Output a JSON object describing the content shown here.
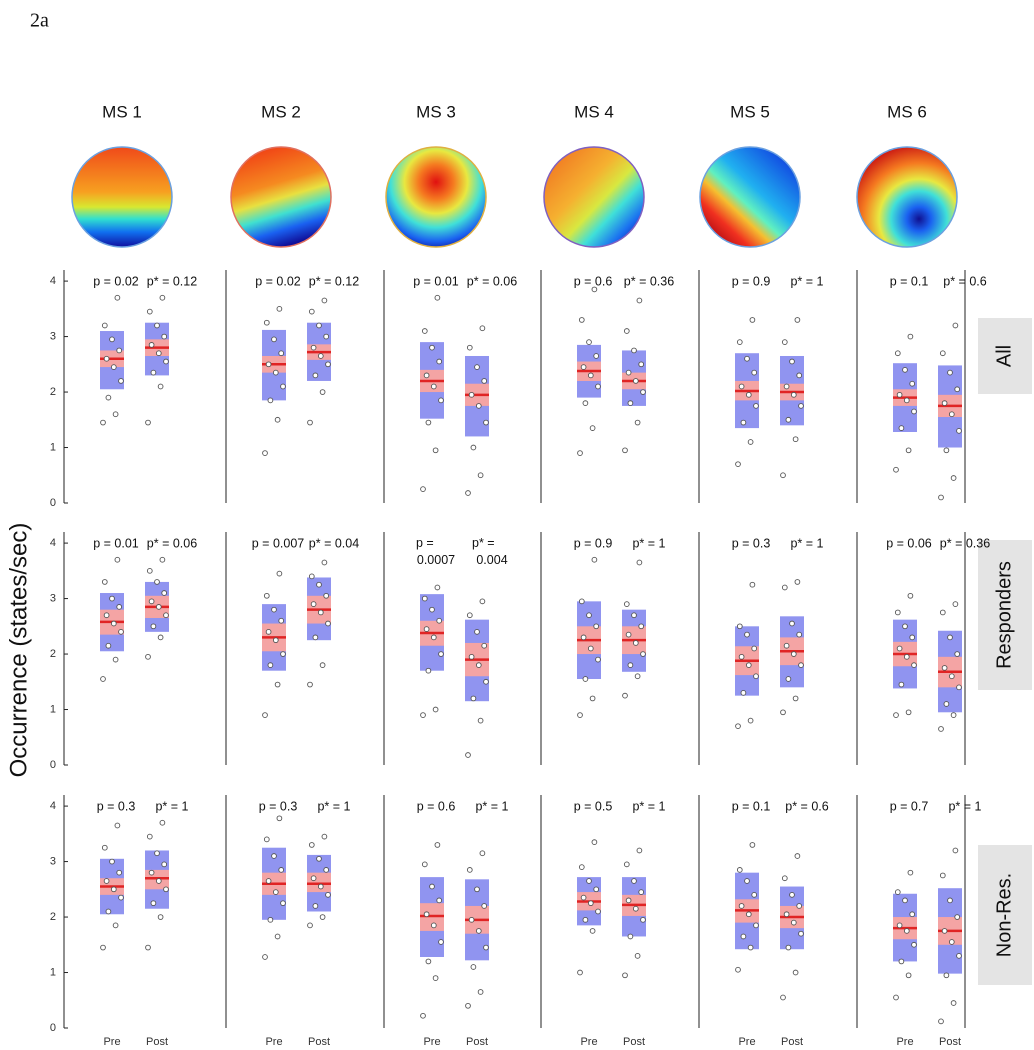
{
  "figure_label": "2a",
  "chart_data": {
    "type": "dotbox",
    "ylabel": "Occurrence (states/sec)",
    "columns": [
      "MS 1",
      "MS 2",
      "MS 3",
      "MS 4",
      "MS 5",
      "MS 6"
    ],
    "rows": [
      "All",
      "Responders",
      "Non-Res."
    ],
    "categories": [
      "Pre",
      "Post"
    ],
    "ylim": [
      0,
      4.2
    ],
    "yticks": [
      0,
      1,
      2,
      3,
      4
    ],
    "sd_color": "#9094f0",
    "ci_color": "#f4a4a4",
    "mean_color": "#e02424",
    "panels": [
      [
        {
          "p": "p = 0.02",
          "pstar": "p* = 0.12",
          "pre": {
            "mean": 2.6,
            "ci": [
              2.45,
              2.75
            ],
            "sd": [
              2.05,
              3.1
            ],
            "points": [
              1.45,
              1.6,
              1.9,
              2.2,
              2.45,
              2.6,
              2.75,
              2.95,
              3.2,
              3.7
            ]
          },
          "post": {
            "mean": 2.8,
            "ci": [
              2.65,
              2.95
            ],
            "sd": [
              2.3,
              3.25
            ],
            "points": [
              1.45,
              2.1,
              2.35,
              2.55,
              2.7,
              2.85,
              3.0,
              3.2,
              3.45,
              3.7
            ]
          }
        },
        {
          "p": "p = 0.02",
          "pstar": "p* = 0.12",
          "pre": {
            "mean": 2.5,
            "ci": [
              2.35,
              2.65
            ],
            "sd": [
              1.85,
              3.12
            ],
            "points": [
              0.9,
              1.5,
              1.85,
              2.1,
              2.35,
              2.5,
              2.7,
              2.95,
              3.25,
              3.5
            ]
          },
          "post": {
            "mean": 2.72,
            "ci": [
              2.58,
              2.86
            ],
            "sd": [
              2.2,
              3.25
            ],
            "points": [
              1.45,
              2.0,
              2.3,
              2.5,
              2.65,
              2.8,
              3.0,
              3.2,
              3.45,
              3.65
            ]
          }
        },
        {
          "p": "p = 0.01",
          "pstar": "p* = 0.06",
          "pre": {
            "mean": 2.2,
            "ci": [
              2.0,
              2.4
            ],
            "sd": [
              1.52,
              2.9
            ],
            "points": [
              0.25,
              0.95,
              1.45,
              1.85,
              2.1,
              2.3,
              2.55,
              2.8,
              3.1,
              3.7
            ]
          },
          "post": {
            "mean": 1.95,
            "ci": [
              1.75,
              2.15
            ],
            "sd": [
              1.2,
              2.65
            ],
            "points": [
              0.18,
              0.5,
              1.0,
              1.45,
              1.75,
              1.95,
              2.2,
              2.45,
              2.8,
              3.15
            ]
          }
        },
        {
          "p": "p = 0.6",
          "pstar": "p* = 0.36",
          "pre": {
            "mean": 2.38,
            "ci": [
              2.2,
              2.55
            ],
            "sd": [
              1.9,
              2.85
            ],
            "points": [
              0.9,
              1.35,
              1.8,
              2.1,
              2.3,
              2.45,
              2.65,
              2.9,
              3.3,
              3.85
            ]
          },
          "post": {
            "mean": 2.2,
            "ci": [
              2.05,
              2.35
            ],
            "sd": [
              1.75,
              2.75
            ],
            "points": [
              0.95,
              1.45,
              1.8,
              2.0,
              2.2,
              2.35,
              2.5,
              2.75,
              3.1,
              3.65
            ]
          }
        },
        {
          "p": "p = 0.9",
          "pstar": "p* = 1",
          "pre": {
            "mean": 2.02,
            "ci": [
              1.85,
              2.2
            ],
            "sd": [
              1.35,
              2.7
            ],
            "points": [
              0.7,
              1.1,
              1.45,
              1.75,
              1.95,
              2.1,
              2.35,
              2.6,
              2.9,
              3.3
            ]
          },
          "post": {
            "mean": 2.0,
            "ci": [
              1.85,
              2.15
            ],
            "sd": [
              1.4,
              2.65
            ],
            "points": [
              0.5,
              1.15,
              1.5,
              1.75,
              1.95,
              2.1,
              2.3,
              2.55,
              2.9,
              3.3
            ]
          }
        },
        {
          "p": "p = 0.1",
          "pstar": "p* = 0.6",
          "pre": {
            "mean": 1.9,
            "ci": [
              1.75,
              2.05
            ],
            "sd": [
              1.28,
              2.52
            ],
            "points": [
              0.6,
              0.95,
              1.35,
              1.65,
              1.85,
              1.95,
              2.15,
              2.4,
              2.7,
              3.0
            ]
          },
          "post": {
            "mean": 1.75,
            "ci": [
              1.55,
              1.95
            ],
            "sd": [
              1.0,
              2.48
            ],
            "points": [
              0.1,
              0.45,
              0.95,
              1.3,
              1.6,
              1.8,
              2.05,
              2.35,
              2.7,
              3.2
            ]
          }
        }
      ],
      [
        {
          "p": "p = 0.01",
          "pstar": "p* = 0.06",
          "pre": {
            "mean": 2.58,
            "ci": [
              2.35,
              2.8
            ],
            "sd": [
              2.05,
              3.1
            ],
            "points": [
              1.55,
              1.9,
              2.15,
              2.4,
              2.55,
              2.7,
              2.85,
              3.0,
              3.3,
              3.7
            ]
          },
          "post": {
            "mean": 2.85,
            "ci": [
              2.65,
              3.05
            ],
            "sd": [
              2.4,
              3.3
            ],
            "points": [
              1.95,
              2.3,
              2.5,
              2.7,
              2.85,
              2.95,
              3.1,
              3.3,
              3.5,
              3.7
            ]
          }
        },
        {
          "p": "p = 0.007",
          "pstar": "p* = 0.04",
          "text_color": "#e8231f",
          "pre": {
            "mean": 2.3,
            "ci": [
              2.05,
              2.55
            ],
            "sd": [
              1.7,
              2.9
            ],
            "points": [
              0.9,
              1.45,
              1.8,
              2.0,
              2.25,
              2.4,
              2.6,
              2.8,
              3.05,
              3.45
            ]
          },
          "post": {
            "mean": 2.8,
            "ci": [
              2.55,
              3.05
            ],
            "sd": [
              2.25,
              3.38
            ],
            "points": [
              1.45,
              1.8,
              2.3,
              2.55,
              2.75,
              2.9,
              3.05,
              3.25,
              3.4,
              3.65
            ]
          }
        },
        {
          "p": "p = 0.0007",
          "pstar": "p* = 0.004",
          "text_color": "#e8231f",
          "wrap": true,
          "pre": {
            "mean": 2.38,
            "ci": [
              2.15,
              2.6
            ],
            "sd": [
              1.7,
              3.08
            ],
            "points": [
              0.9,
              1.0,
              1.7,
              2.0,
              2.3,
              2.45,
              2.6,
              2.8,
              3.0,
              3.2
            ]
          },
          "post": {
            "mean": 1.9,
            "ci": [
              1.6,
              2.2
            ],
            "sd": [
              1.15,
              2.62
            ],
            "points": [
              0.18,
              0.8,
              1.2,
              1.5,
              1.8,
              1.95,
              2.15,
              2.4,
              2.7,
              2.95
            ]
          }
        },
        {
          "p": "p = 0.9",
          "pstar": "p* = 1",
          "pre": {
            "mean": 2.25,
            "ci": [
              2.0,
              2.5
            ],
            "sd": [
              1.55,
              2.95
            ],
            "points": [
              0.9,
              1.2,
              1.55,
              1.9,
              2.1,
              2.3,
              2.5,
              2.7,
              2.95,
              3.7
            ]
          },
          "post": {
            "mean": 2.25,
            "ci": [
              2.0,
              2.5
            ],
            "sd": [
              1.68,
              2.8
            ],
            "points": [
              1.25,
              1.6,
              1.8,
              2.0,
              2.2,
              2.35,
              2.5,
              2.7,
              2.9,
              3.65
            ]
          }
        },
        {
          "p": "p = 0.3",
          "pstar": "p* = 1",
          "pre": {
            "mean": 1.88,
            "ci": [
              1.62,
              2.14
            ],
            "sd": [
              1.25,
              2.5
            ],
            "points": [
              0.7,
              0.8,
              1.3,
              1.6,
              1.8,
              1.95,
              2.1,
              2.35,
              2.5,
              3.25
            ]
          },
          "post": {
            "mean": 2.05,
            "ci": [
              1.8,
              2.3
            ],
            "sd": [
              1.4,
              2.68
            ],
            "points": [
              0.95,
              1.2,
              1.55,
              1.8,
              2.0,
              2.15,
              2.35,
              2.55,
              3.2,
              3.3
            ]
          }
        },
        {
          "p": "p = 0.06",
          "pstar": "p* = 0.36",
          "pre": {
            "mean": 2.0,
            "ci": [
              1.78,
              2.22
            ],
            "sd": [
              1.38,
              2.62
            ],
            "points": [
              0.9,
              0.95,
              1.45,
              1.8,
              1.95,
              2.1,
              2.3,
              2.5,
              2.75,
              3.05
            ]
          },
          "post": {
            "mean": 1.68,
            "ci": [
              1.4,
              1.95
            ],
            "sd": [
              0.95,
              2.42
            ],
            "points": [
              0.65,
              0.9,
              1.1,
              1.4,
              1.6,
              1.75,
              2.0,
              2.3,
              2.75,
              2.9
            ]
          }
        }
      ],
      [
        {
          "p": "p = 0.3",
          "pstar": "p* = 1",
          "pre": {
            "mean": 2.55,
            "ci": [
              2.4,
              2.7
            ],
            "sd": [
              2.05,
              3.05
            ],
            "points": [
              1.45,
              1.85,
              2.1,
              2.35,
              2.5,
              2.65,
              2.8,
              3.0,
              3.25,
              3.65
            ]
          },
          "post": {
            "mean": 2.7,
            "ci": [
              2.5,
              2.85
            ],
            "sd": [
              2.15,
              3.2
            ],
            "points": [
              1.45,
              2.0,
              2.25,
              2.5,
              2.65,
              2.8,
              2.95,
              3.15,
              3.45,
              3.7
            ]
          }
        },
        {
          "p": "p = 0.3",
          "pstar": "p* = 1",
          "pre": {
            "mean": 2.6,
            "ci": [
              2.4,
              2.8
            ],
            "sd": [
              1.95,
              3.25
            ],
            "points": [
              1.28,
              1.65,
              1.95,
              2.25,
              2.45,
              2.65,
              2.85,
              3.1,
              3.4,
              3.78
            ]
          },
          "post": {
            "mean": 2.6,
            "ci": [
              2.45,
              2.8
            ],
            "sd": [
              2.1,
              3.12
            ],
            "points": [
              1.85,
              2.0,
              2.2,
              2.4,
              2.55,
              2.7,
              2.85,
              3.05,
              3.3,
              3.45
            ]
          }
        },
        {
          "p": "p = 0.6",
          "pstar": "p* = 1",
          "pre": {
            "mean": 2.02,
            "ci": [
              1.75,
              2.25
            ],
            "sd": [
              1.28,
              2.72
            ],
            "points": [
              0.22,
              0.9,
              1.2,
              1.55,
              1.85,
              2.05,
              2.3,
              2.55,
              2.95,
              3.3
            ]
          },
          "post": {
            "mean": 1.95,
            "ci": [
              1.7,
              2.2
            ],
            "sd": [
              1.22,
              2.68
            ],
            "points": [
              0.4,
              0.65,
              1.1,
              1.45,
              1.75,
              1.95,
              2.2,
              2.5,
              2.85,
              3.15
            ]
          }
        },
        {
          "p": "p = 0.5",
          "pstar": "p* = 1",
          "pre": {
            "mean": 2.28,
            "ci": [
              2.12,
              2.45
            ],
            "sd": [
              1.85,
              2.72
            ],
            "points": [
              1.0,
              1.75,
              1.95,
              2.1,
              2.25,
              2.35,
              2.5,
              2.65,
              2.9,
              3.35
            ]
          },
          "post": {
            "mean": 2.22,
            "ci": [
              2.02,
              2.4
            ],
            "sd": [
              1.65,
              2.72
            ],
            "points": [
              0.95,
              1.3,
              1.65,
              1.95,
              2.15,
              2.3,
              2.45,
              2.65,
              2.95,
              3.2
            ]
          }
        },
        {
          "p": "p = 0.1",
          "pstar": "p* = 0.6",
          "pre": {
            "mean": 2.12,
            "ci": [
              1.9,
              2.32
            ],
            "sd": [
              1.42,
              2.8
            ],
            "points": [
              1.05,
              1.45,
              1.65,
              1.85,
              2.05,
              2.2,
              2.4,
              2.65,
              2.85,
              3.3
            ]
          },
          "post": {
            "mean": 2.0,
            "ci": [
              1.8,
              2.2
            ],
            "sd": [
              1.42,
              2.55
            ],
            "points": [
              0.55,
              1.0,
              1.45,
              1.7,
              1.9,
              2.05,
              2.2,
              2.4,
              2.7,
              3.1
            ]
          }
        },
        {
          "p": "p = 0.7",
          "pstar": "p* = 1",
          "pre": {
            "mean": 1.8,
            "ci": [
              1.6,
              2.0
            ],
            "sd": [
              1.2,
              2.42
            ],
            "points": [
              0.55,
              0.95,
              1.2,
              1.5,
              1.75,
              1.85,
              2.05,
              2.3,
              2.45,
              2.8
            ]
          },
          "post": {
            "mean": 1.75,
            "ci": [
              1.5,
              2.0
            ],
            "sd": [
              0.98,
              2.52
            ],
            "points": [
              0.12,
              0.45,
              0.95,
              1.3,
              1.55,
              1.75,
              2.0,
              2.3,
              2.75,
              3.2
            ]
          }
        }
      ]
    ]
  }
}
